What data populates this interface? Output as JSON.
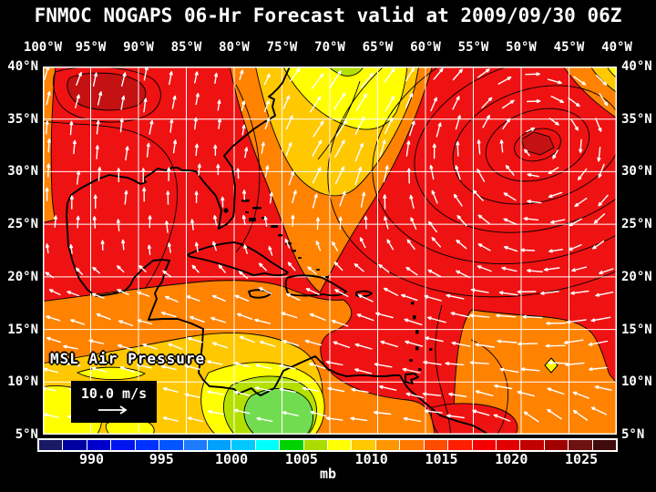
{
  "title": "FNMOC NOGAPS 06-Hr Forecast valid at 2009/09/30 06Z",
  "map": {
    "lon_labels": [
      "100°W",
      "95°W",
      "90°W",
      "85°W",
      "80°W",
      "75°W",
      "70°W",
      "65°W",
      "60°W",
      "55°W",
      "50°W",
      "45°W",
      "40°W"
    ],
    "lat_labels": [
      "40°N",
      "35°N",
      "30°N",
      "25°N",
      "20°N",
      "15°N",
      "10°N",
      "5°N"
    ],
    "field_label": "MSL Air Pressure",
    "wind_legend": {
      "speed_label": "10.0 m/s"
    },
    "grid_color": "#ffffff",
    "coast_color": "#000000"
  },
  "field_colors": {
    "base_red": "#ef1212",
    "dark_red": "#c41111",
    "orange": "#ff8200",
    "gold": "#ffc800",
    "yellow": "#ffff00",
    "yellow_green": "#b4e000",
    "green": "#72dc50"
  },
  "colorbar": {
    "unit": "mb",
    "tick_labels": [
      "990",
      "995",
      "1000",
      "1005",
      "1010",
      "1015",
      "1020",
      "1025"
    ],
    "cell_colors": [
      "#191965",
      "#0000a0",
      "#0000cd",
      "#0014f0",
      "#0032ff",
      "#0055ff",
      "#1e7aff",
      "#00a0ff",
      "#00c8ff",
      "#00ffff",
      "#00d200",
      "#aadc00",
      "#ffff00",
      "#ffc800",
      "#ff9600",
      "#ff7800",
      "#ff4b00",
      "#ff1e00",
      "#f50000",
      "#e10000",
      "#c30000",
      "#a00000",
      "#6e1111",
      "#400b0b"
    ]
  }
}
